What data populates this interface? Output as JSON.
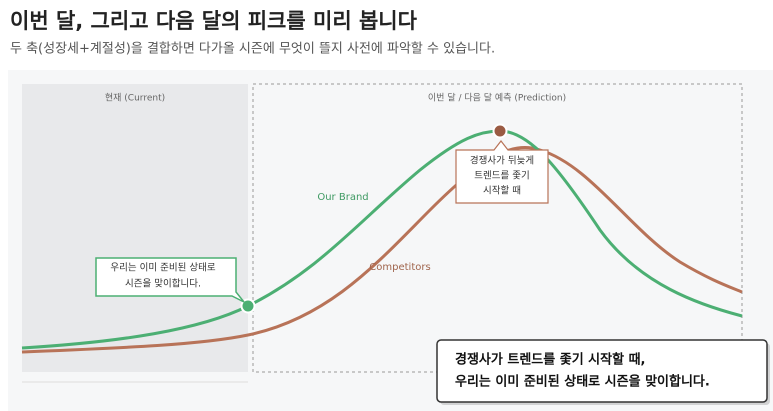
{
  "header": {
    "title": "이번 달, 그리고 다음 달의 피크를 미리 봅니다",
    "subtitle": "두 축(성장세+계절성)을 결합하면 다가올 시즌에 무엇이 뜰지 사전에 파악할 수 있습니다."
  },
  "panels": {
    "current": "현재 (Current)",
    "prediction": "이번 달 / 다음 달 예측 (Prediction)"
  },
  "curves": {
    "brand": "Our Brand",
    "competitors": "Competitors"
  },
  "callouts": {
    "competitor_note": [
      "경쟁사가 뒤늦게",
      "트렌드를 좇기",
      "시작할 때"
    ],
    "brand_note": [
      "우리는 이미 준비된 상태로",
      "시즌을 맞이합니다."
    ],
    "summary": [
      "경쟁사가 트렌드를 좇기 시작할 때,",
      "우리는 이미 준비된 상태로 시즌을 맞이합니다."
    ]
  }
}
